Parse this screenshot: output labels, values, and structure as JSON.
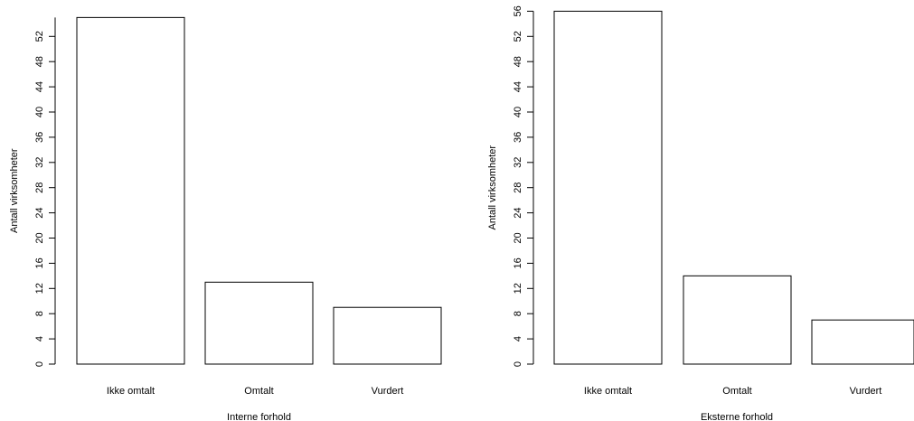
{
  "chart_data": [
    {
      "type": "bar",
      "categories": [
        "Ikke omtalt",
        "Omtalt",
        "Vurdert"
      ],
      "values": [
        55,
        13,
        9
      ],
      "xlabel": "Interne forhold",
      "ylabel": "Antall virksomheter",
      "ylim": [
        0,
        55
      ],
      "yticks": [
        0,
        4,
        8,
        12,
        16,
        20,
        24,
        28,
        32,
        36,
        40,
        44,
        48,
        52
      ],
      "grid": false
    },
    {
      "type": "bar",
      "categories": [
        "Ikke omtalt",
        "Omtalt",
        "Vurdert"
      ],
      "values": [
        56,
        14,
        7
      ],
      "xlabel": "Eksterne forhold",
      "ylabel": "Antall virksomheter",
      "ylim": [
        0,
        56
      ],
      "yticks": [
        0,
        4,
        8,
        12,
        16,
        20,
        24,
        28,
        32,
        36,
        40,
        44,
        48,
        52,
        56
      ],
      "grid": false
    }
  ]
}
